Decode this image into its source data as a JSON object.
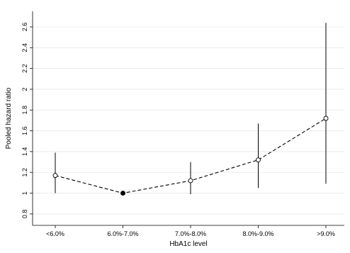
{
  "chart_data": {
    "type": "line",
    "xlabel": "HbA1c level",
    "ylabel": "Pooled hazard ratio",
    "categories": [
      "<6.0%",
      "6.0%-7.0%",
      "7.0%-8.0%",
      "8.0%-9.0%",
      ">9.0%"
    ],
    "ylim": [
      0.69,
      2.75
    ],
    "yticks": [
      0.8,
      1,
      1.2,
      1.4,
      1.6,
      1.8,
      2,
      2.2,
      2.4,
      2.6
    ],
    "grid": true,
    "series": [
      {
        "values": [
          1.17,
          1.0,
          1.12,
          1.32,
          1.72
        ],
        "ci_lower": [
          1.0,
          1.0,
          0.99,
          1.05,
          1.09
        ],
        "ci_upper": [
          1.39,
          1.0,
          1.3,
          1.67,
          2.64
        ],
        "reference_category": "6.0%-7.0%",
        "line_style": "dashed"
      }
    ],
    "colors": {
      "line": "#000000",
      "grid": "#e6e6e6",
      "reference_marker": "#000000",
      "marker_fill": "#ffffff"
    }
  }
}
